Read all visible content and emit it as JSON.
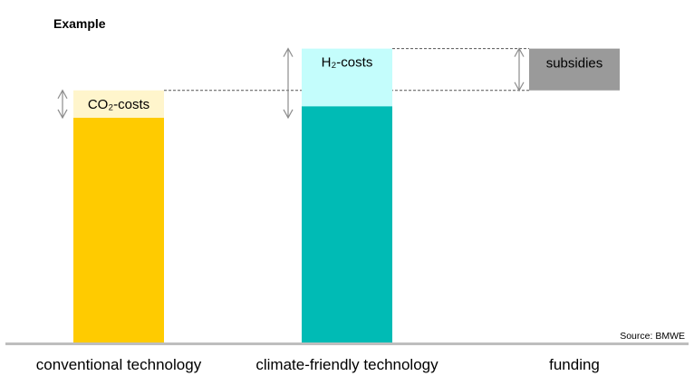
{
  "chart_data": {
    "type": "bar",
    "title": "Example",
    "source": "Source: BMWE",
    "categories": [
      "conventional technology",
      "climate-friendly technology",
      "funding"
    ],
    "ylim": [
      0,
      100
    ],
    "bars": [
      {
        "category": "conventional technology",
        "segments": [
          {
            "name": "base",
            "value": 78,
            "color": "#FFCB00",
            "label": ""
          },
          {
            "name": "CO2-costs",
            "value": 9.5,
            "color": "#FFF5CC",
            "label": "CO₂-costs"
          }
        ]
      },
      {
        "category": "climate-friendly technology",
        "segments": [
          {
            "name": "base",
            "value": 82,
            "color": "#00BBB5",
            "label": ""
          },
          {
            "name": "H2-costs",
            "value": 20,
            "color": "#C4FDFC",
            "label": "H₂-costs"
          }
        ]
      },
      {
        "category": "funding",
        "segments": [
          {
            "name": "subsidies",
            "value": 14.5,
            "start": 87.5,
            "color": "#9A9A9A",
            "label": "subsidies"
          }
        ]
      }
    ],
    "colors": {
      "axis": "#BEBEBE",
      "arrow": "#8C8C8C",
      "dashed": "#555555"
    }
  }
}
